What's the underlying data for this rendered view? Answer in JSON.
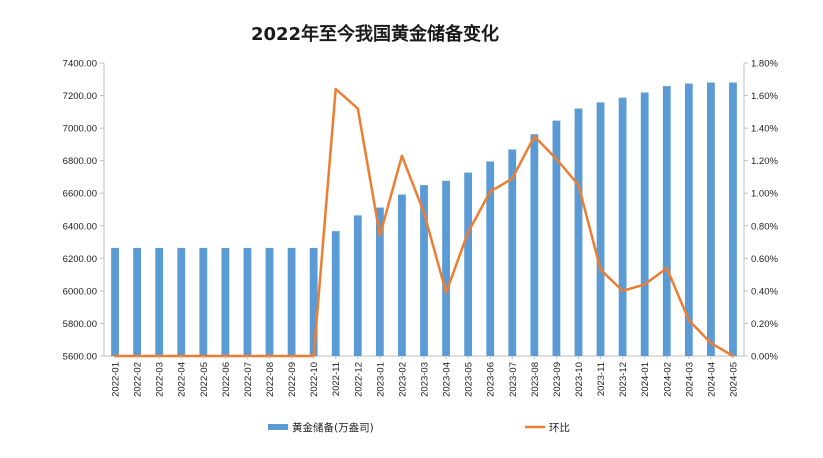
{
  "chart_data": {
    "type": "bar",
    "title": "2022年至今我国黄金储备变化",
    "categories": [
      "2022-01",
      "2022-02",
      "2022-03",
      "2022-04",
      "2022-05",
      "2022-06",
      "2022-07",
      "2022-08",
      "2022-09",
      "2022-10",
      "2022-11",
      "2022-12",
      "2023-01",
      "2023-02",
      "2023-03",
      "2023-04",
      "2023-05",
      "2023-06",
      "2023-07",
      "2023-08",
      "2023-09",
      "2023-10",
      "2023-11",
      "2023-12",
      "2024-01",
      "2024-02",
      "2024-03",
      "2024-04",
      "2024-05"
    ],
    "series": [
      {
        "name": "黄金储备(万盎司)",
        "type": "bar",
        "axis": "left",
        "color": "#5b9bd5",
        "values": [
          6264,
          6264,
          6264,
          6264,
          6264,
          6264,
          6264,
          6264,
          6264,
          6264,
          6367,
          6464,
          6512,
          6592,
          6650,
          6676,
          6727,
          6795,
          6869,
          6962,
          7046,
          7120,
          7158,
          7187,
          7219,
          7258,
          7274,
          7280,
          7280
        ]
      },
      {
        "name": "环比",
        "type": "line",
        "axis": "right",
        "color": "#ed7d31",
        "values": [
          0,
          0,
          0,
          0,
          0,
          0,
          0,
          0,
          0,
          0,
          1.64,
          1.52,
          0.74,
          1.23,
          0.88,
          0.39,
          0.76,
          1.01,
          1.09,
          1.35,
          1.21,
          1.05,
          0.53,
          0.4,
          0.44,
          0.54,
          0.22,
          0.08,
          0
        ]
      }
    ],
    "y_left": {
      "ylim": [
        5600,
        7400
      ],
      "ticks": [
        "5600.00",
        "5800.00",
        "6000.00",
        "6200.00",
        "6400.00",
        "6600.00",
        "6800.00",
        "7000.00",
        "7200.00",
        "7400.00"
      ]
    },
    "y_right": {
      "ylim": [
        0,
        1.8
      ],
      "ticks": [
        "0.00%",
        "0.20%",
        "0.40%",
        "0.60%",
        "0.80%",
        "1.00%",
        "1.20%",
        "1.40%",
        "1.60%",
        "1.80%"
      ]
    },
    "grid": false,
    "legend": "bottom"
  }
}
